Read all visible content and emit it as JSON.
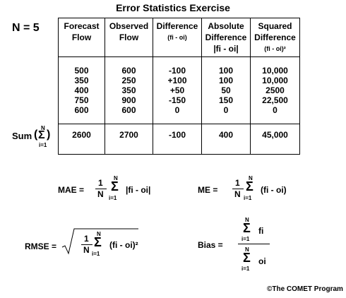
{
  "title": "Error  Statistics Exercise",
  "n_label": "N = 5",
  "table": {
    "headers": [
      {
        "line1": "Forecast",
        "line2": "Flow",
        "line3": ""
      },
      {
        "line1": "Observed",
        "line2": "Flow",
        "line3": ""
      },
      {
        "line1": "Difference",
        "line2": "(fi - oi)",
        "line3": ""
      },
      {
        "line1": "Absolute",
        "line2": "Difference",
        "line3": "|fi - oi|"
      },
      {
        "line1": "Squared",
        "line2": "Difference",
        "line3": "(fi - oi)²"
      }
    ],
    "columns": [
      [
        "500",
        "350",
        "400",
        "750",
        "600"
      ],
      [
        "600",
        "250",
        "350",
        "900",
        "600"
      ],
      [
        "-100",
        "+100",
        "+50",
        "-150",
        "0"
      ],
      [
        "100",
        "100",
        "50",
        "150",
        "0"
      ],
      [
        "10,000",
        "10,000",
        "2500",
        "22,500",
        "0"
      ]
    ],
    "sums": [
      "2600",
      "2700",
      "-100",
      "400",
      "45,000"
    ]
  },
  "sum_label": "Sum",
  "formulas": {
    "mae_label": "MAE =",
    "me_label": "ME =",
    "rmse_label": "RMSE =",
    "bias_label": "Bias =",
    "one": "1",
    "n": "N",
    "sigma": "Σ",
    "upper": "N",
    "lower": "i=1",
    "abs_term": "|fi - oi|",
    "diff_term": "(fi - oi)",
    "sq_term": "(fi - oi)²",
    "f_term": "fi",
    "o_term": "oi"
  },
  "copyright": "©The COMET Program"
}
